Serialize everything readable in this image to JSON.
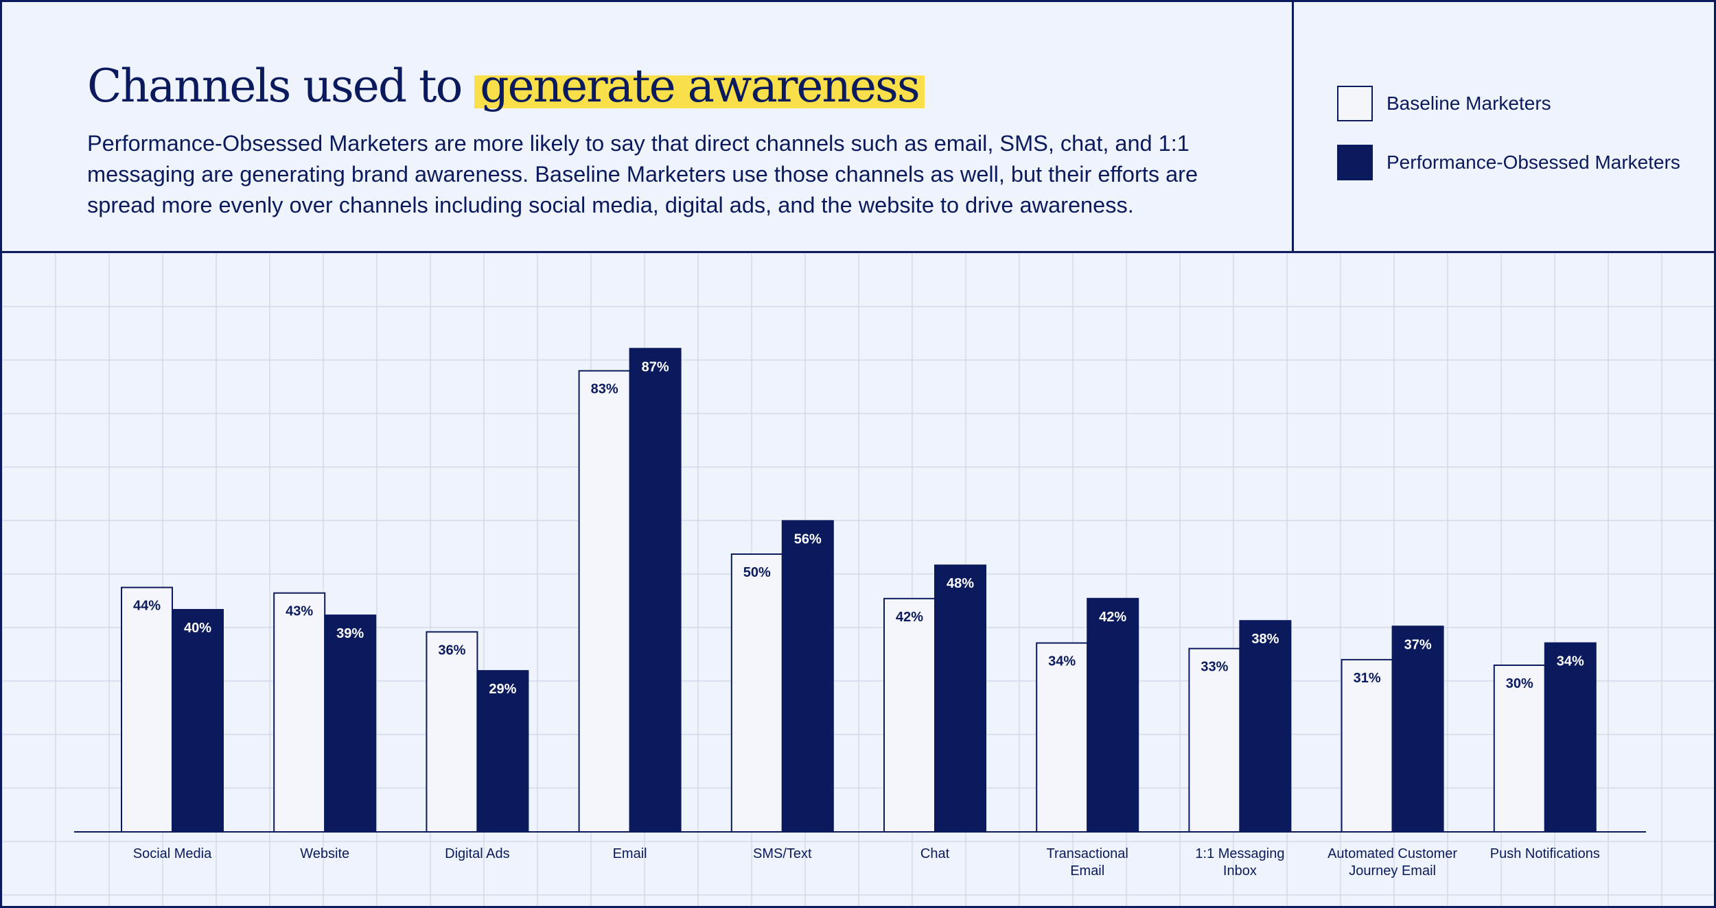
{
  "header": {
    "title_plain": "Channels used to ",
    "title_highlight": "generate awareness",
    "subtitle": "Performance-Obsessed Marketers are more likely to say that direct channels such as email, SMS, chat, and 1:1 messaging are generating brand awareness. Baseline Marketers use those channels as well, but their efforts are spread more evenly over channels including social media, digital ads, and the website to drive awareness."
  },
  "legend": {
    "items": [
      {
        "label": "Baseline Marketers"
      },
      {
        "label": "Performance-Obsessed Marketers"
      }
    ]
  },
  "colors": {
    "navy": "#0a1a5c",
    "background": "#eff3fb",
    "baseline_fill": "#f4f6fc",
    "highlight": "#f9e04b",
    "grid": "#c9cfe6"
  },
  "chart_data": {
    "type": "bar",
    "categories": [
      "Social Media",
      "Website",
      "Digital Ads",
      "Email",
      "SMS/Text",
      "Chat",
      "Transactional Email",
      "1:1 Messaging Inbox",
      "Automated Customer Journey Email",
      "Push Notifications"
    ],
    "category_lines": [
      [
        "Social Media"
      ],
      [
        "Website"
      ],
      [
        "Digital Ads"
      ],
      [
        "Email"
      ],
      [
        "SMS/Text"
      ],
      [
        "Chat"
      ],
      [
        "Transactional",
        "Email"
      ],
      [
        "1:1 Messaging",
        "Inbox"
      ],
      [
        "Automated Customer",
        "Journey Email"
      ],
      [
        "Push Notifications"
      ]
    ],
    "series": [
      {
        "name": "Baseline Marketers",
        "values": [
          44,
          43,
          36,
          83,
          50,
          42,
          34,
          33,
          31,
          30
        ]
      },
      {
        "name": "Performance-Obsessed Marketers",
        "values": [
          40,
          39,
          29,
          87,
          56,
          48,
          42,
          38,
          37,
          34
        ]
      }
    ],
    "value_suffix": "%",
    "ylim": [
      0,
      100
    ],
    "grid": true,
    "legend_position": "top-right"
  }
}
